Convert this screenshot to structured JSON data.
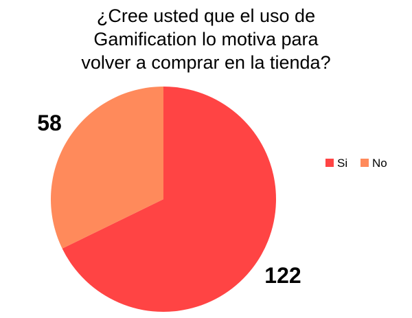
{
  "chart_data": {
    "type": "pie",
    "title_lines": [
      "¿Cree usted que el uso de",
      "Gamification lo motiva para",
      "volver a comprar en la tienda?"
    ],
    "categories": [
      "Si",
      "No"
    ],
    "values": [
      122,
      58
    ],
    "colors": [
      "#ff4444",
      "#ff8a5b"
    ],
    "data_labels": [
      "122",
      "58"
    ],
    "legend_placement": "right"
  }
}
